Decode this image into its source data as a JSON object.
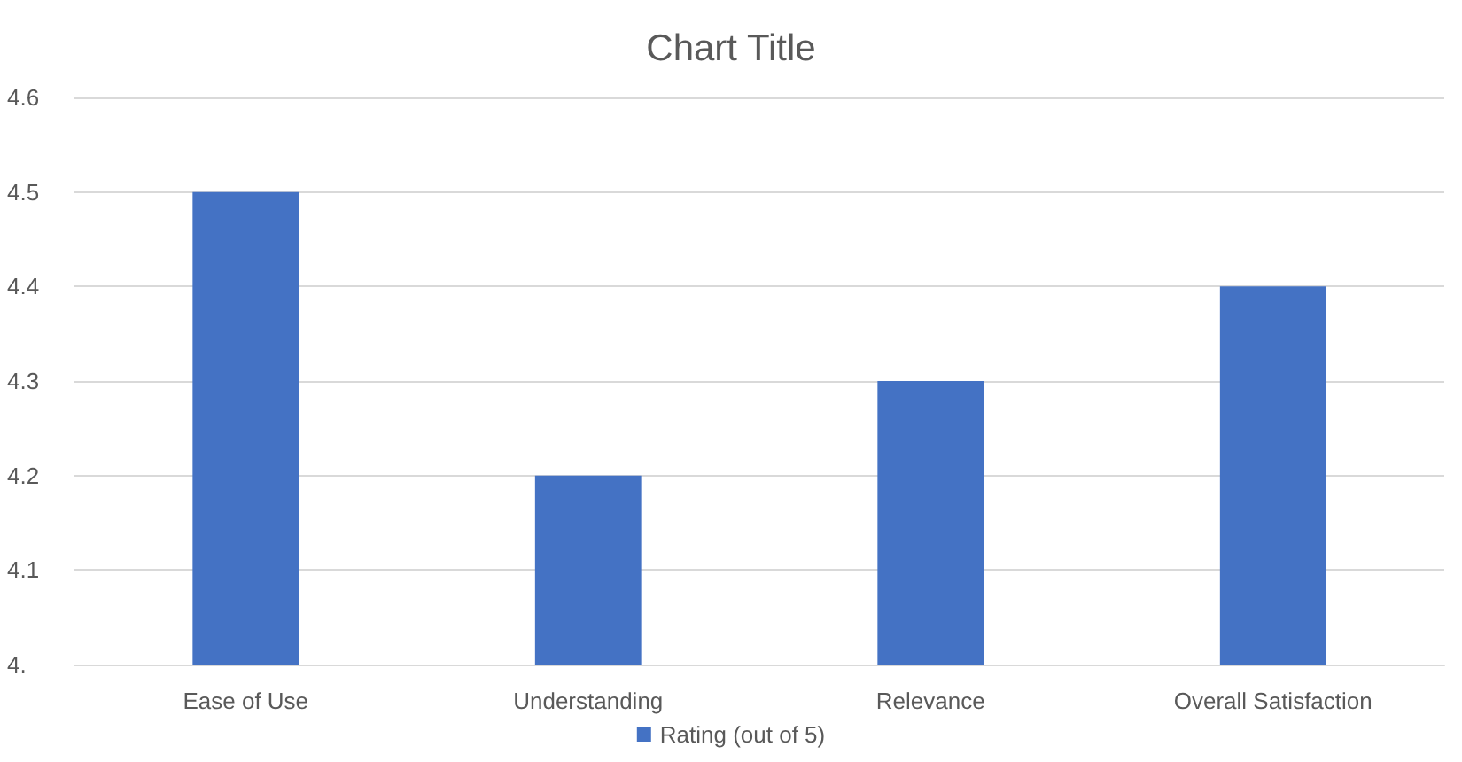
{
  "chart_data": {
    "type": "bar",
    "title": "Chart Title",
    "categories": [
      "Ease of Use",
      "Understanding",
      "Relevance",
      "Overall Satisfaction"
    ],
    "series": [
      {
        "name": "Rating (out of 5)",
        "color": "#4472c4",
        "values": [
          4.5,
          4.2,
          4.3,
          4.4
        ]
      }
    ],
    "ylim": [
      4,
      4.6
    ],
    "yticks": [
      {
        "value": 4,
        "label": "4."
      },
      4.1,
      4.2,
      4.3,
      4.4,
      4.5,
      4.6
    ],
    "grid": "y",
    "legend": "bottom"
  }
}
